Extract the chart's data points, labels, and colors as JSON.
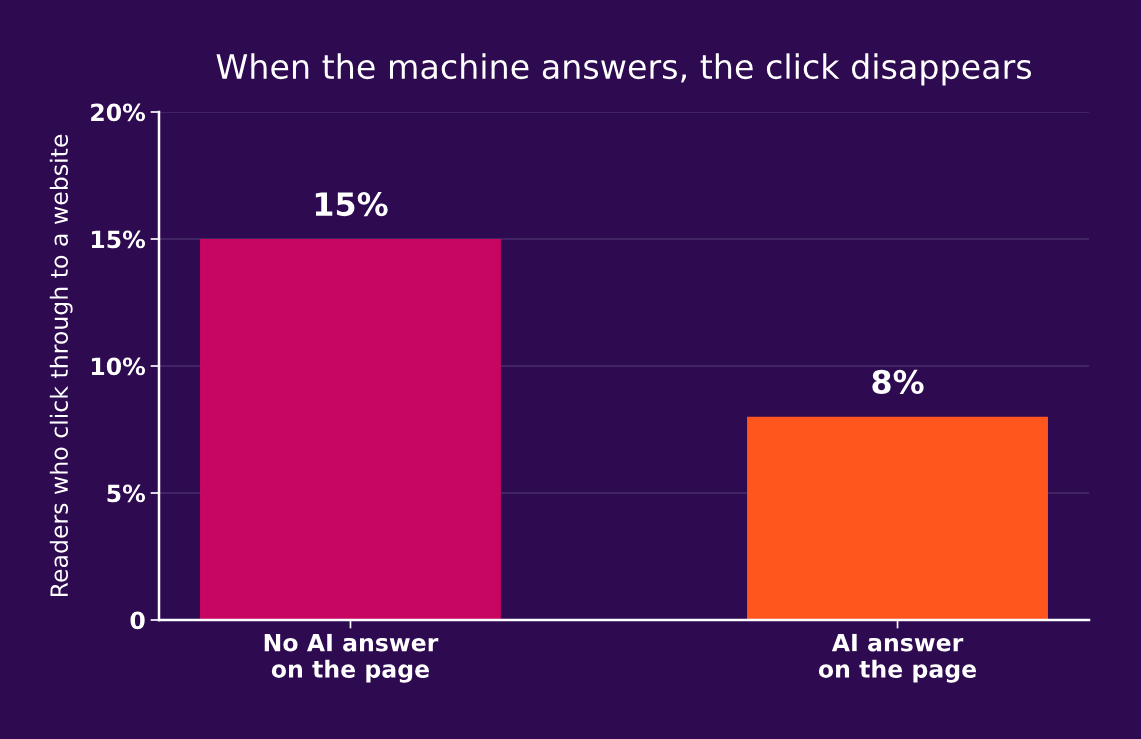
{
  "chart_data": {
    "type": "bar",
    "title": "When the machine answers, the click disappears",
    "ylabel": "Readers who click through to a website",
    "categories": [
      "No AI answer\non the page",
      "AI answer\non the page"
    ],
    "values": [
      15,
      8
    ],
    "colors": [
      "#c70662",
      "#ff561e"
    ],
    "value_labels": [
      "15%",
      "8%"
    ],
    "ylim": [
      0,
      20
    ],
    "yticks": [
      {
        "value": 0,
        "label": "0"
      },
      {
        "value": 5,
        "label": "5%"
      },
      {
        "value": 10,
        "label": "10%"
      },
      {
        "value": 15,
        "label": "15%"
      },
      {
        "value": 20,
        "label": "20%"
      }
    ],
    "grid": "y",
    "legend": false
  }
}
